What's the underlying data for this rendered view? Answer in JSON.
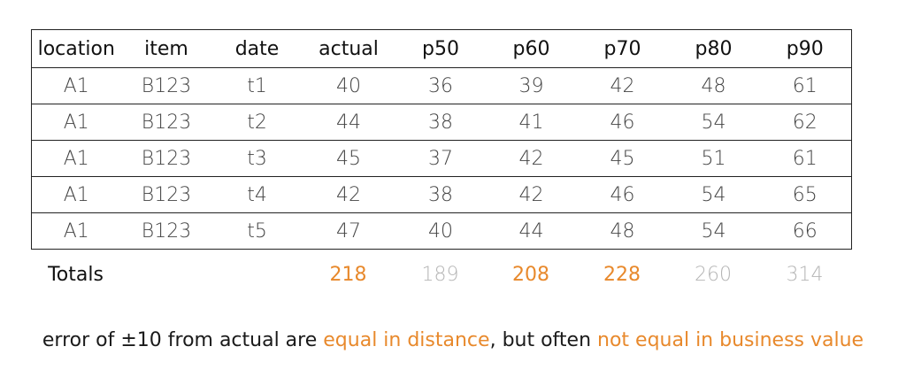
{
  "table": {
    "headers": [
      "location",
      "item",
      "date",
      "actual",
      "p50",
      "p60",
      "p70",
      "p80",
      "p90"
    ],
    "rows": [
      [
        "A1",
        "B123",
        "t1",
        "40",
        "36",
        "39",
        "42",
        "48",
        "61"
      ],
      [
        "A1",
        "B123",
        "t2",
        "44",
        "38",
        "41",
        "46",
        "54",
        "62"
      ],
      [
        "A1",
        "B123",
        "t3",
        "45",
        "37",
        "42",
        "45",
        "51",
        "61"
      ],
      [
        "A1",
        "B123",
        "t4",
        "42",
        "38",
        "42",
        "46",
        "54",
        "65"
      ],
      [
        "A1",
        "B123",
        "t5",
        "47",
        "40",
        "44",
        "48",
        "54",
        "66"
      ]
    ]
  },
  "totals": {
    "label": "Totals",
    "actual": "218",
    "p50": "189",
    "p60": "208",
    "p70": "228",
    "p80": "260",
    "p90": "314"
  },
  "colors": {
    "highlight": "#e8892c",
    "muted": "#b5b5b5"
  },
  "caption": {
    "part1": "error of ±10 from actual are ",
    "highlight1": "equal in distance",
    "part2": ", but often ",
    "highlight2": "not equal in business value"
  }
}
